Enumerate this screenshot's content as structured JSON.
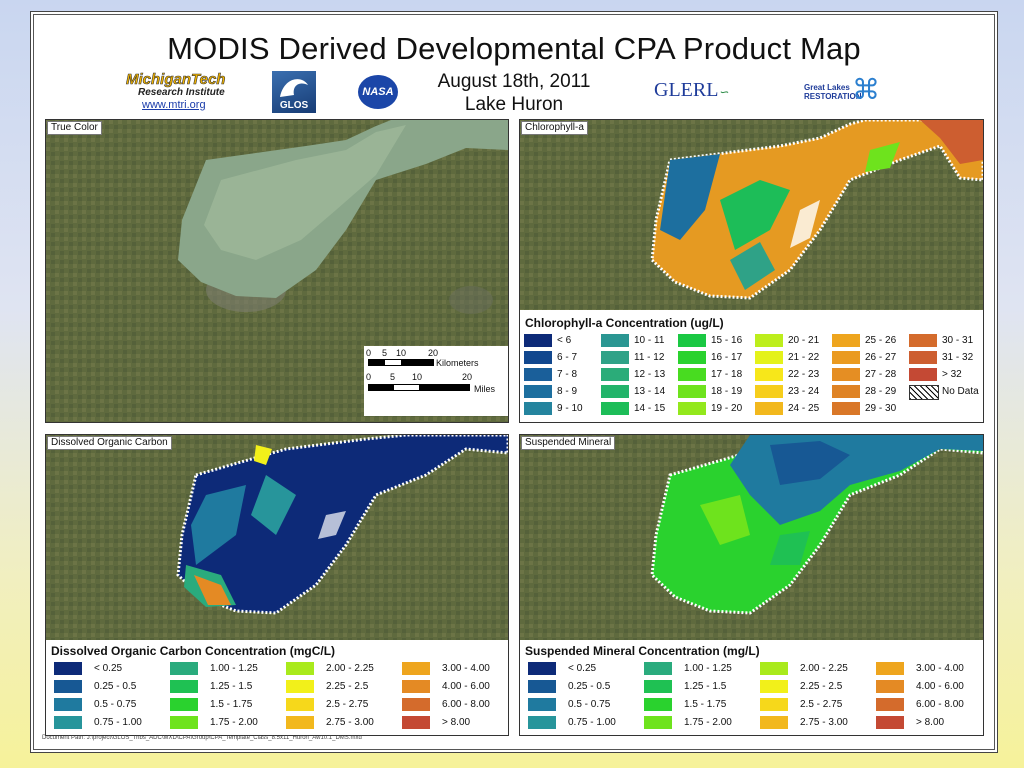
{
  "header": {
    "title": "MODIS Derived Developmental CPA Product Map",
    "date": "August 18th, 2011",
    "lake": "Lake Huron"
  },
  "logos": {
    "mtu_line1": "MichiganTech",
    "mtu_line2": "Research Institute",
    "mtu_url": "www.mtri.org",
    "glos": "GLOS",
    "nasa": "NASA",
    "glerl": "GLERL",
    "glri_line1": "Great Lakes",
    "glri_line2": "RESTORATION"
  },
  "panels": {
    "true_color": "True Color",
    "chlorophyll": "Chlorophyll-a",
    "doc": "Dissolved Organic Carbon",
    "sm": "Suspended Mineral"
  },
  "scale_bar": {
    "km_ticks": [
      "0",
      "5",
      "10",
      "20"
    ],
    "km_unit": "Kilometers",
    "mi_ticks": [
      "0",
      "5",
      "10",
      "20"
    ],
    "mi_unit": "Miles"
  },
  "legends": {
    "chl": {
      "title": "Chlorophyll-a Concentration (ug/L)",
      "columns": [
        [
          {
            "label": "< 6",
            "color": "#0d2a78"
          },
          {
            "label": "6 - 7",
            "color": "#11478e"
          },
          {
            "label": "7 - 8",
            "color": "#1a5f9a"
          },
          {
            "label": "8 - 9",
            "color": "#1d6f9f"
          },
          {
            "label": "9 - 10",
            "color": "#24849e"
          }
        ],
        [
          {
            "label": "10 - 11",
            "color": "#2a9692"
          },
          {
            "label": "11 - 12",
            "color": "#2fa287"
          },
          {
            "label": "12 - 13",
            "color": "#2bac79"
          },
          {
            "label": "13 - 14",
            "color": "#22b46a"
          },
          {
            "label": "14 - 15",
            "color": "#1dbd58"
          }
        ],
        [
          {
            "label": "15 - 16",
            "color": "#1ac843"
          },
          {
            "label": "16 - 17",
            "color": "#2ad22e"
          },
          {
            "label": "17 - 18",
            "color": "#48dc20"
          },
          {
            "label": "18 - 19",
            "color": "#6ee31d"
          },
          {
            "label": "19 - 20",
            "color": "#93e81c"
          }
        ],
        [
          {
            "label": "20 - 21",
            "color": "#bdee1c"
          },
          {
            "label": "21 - 22",
            "color": "#e4f21a"
          },
          {
            "label": "22 - 23",
            "color": "#f7e71a"
          },
          {
            "label": "23 - 24",
            "color": "#f6ce1c"
          },
          {
            "label": "24 - 25",
            "color": "#f2b81d"
          }
        ],
        [
          {
            "label": "25 - 26",
            "color": "#eea51e"
          },
          {
            "label": "26 - 27",
            "color": "#ea9a20"
          },
          {
            "label": "27 - 28",
            "color": "#e58e23"
          },
          {
            "label": "28 - 29",
            "color": "#df8325"
          },
          {
            "label": "29 - 30",
            "color": "#d97728"
          }
        ],
        [
          {
            "label": "30 - 31",
            "color": "#d46b2c"
          },
          {
            "label": "31 - 32",
            "color": "#cd5e30"
          },
          {
            "label": "> 32",
            "color": "#c44934"
          },
          {
            "label": "No Data",
            "color": "nodata"
          }
        ]
      ]
    },
    "doc": {
      "title": "Dissolved Organic Carbon Concentration (mgC/L)",
      "columns": [
        [
          {
            "label": "< 0.25",
            "color": "#0d2a78"
          },
          {
            "label": "0.25 - 0.5",
            "color": "#175894"
          },
          {
            "label": "0.5 - 0.75",
            "color": "#1f7a9f"
          },
          {
            "label": "0.75 - 1.00",
            "color": "#27959b"
          }
        ],
        [
          {
            "label": "1.00 - 1.25",
            "color": "#2aab7d"
          },
          {
            "label": "1.25 - 1.5",
            "color": "#1fc153"
          },
          {
            "label": "1.5 - 1.75",
            "color": "#2ad22e"
          },
          {
            "label": "1.75 - 2.00",
            "color": "#6ee31d"
          }
        ],
        [
          {
            "label": "2.00 - 2.25",
            "color": "#a9ea1c"
          },
          {
            "label": "2.25 - 2.5",
            "color": "#f2f01a"
          },
          {
            "label": "2.5 - 2.75",
            "color": "#f6d81b"
          },
          {
            "label": "2.75 - 3.00",
            "color": "#f2b81d"
          }
        ],
        [
          {
            "label": "3.00 - 4.00",
            "color": "#eea51e"
          },
          {
            "label": "4.00 - 6.00",
            "color": "#e48a24"
          },
          {
            "label": "6.00 - 8.00",
            "color": "#d46b2c"
          },
          {
            "label": "> 8.00",
            "color": "#c44934"
          }
        ]
      ]
    },
    "sm": {
      "title": "Suspended Mineral Concentration (mg/L)",
      "columns": [
        [
          {
            "label": "< 0.25",
            "color": "#0d2a78"
          },
          {
            "label": "0.25 - 0.5",
            "color": "#175894"
          },
          {
            "label": "0.5 - 0.75",
            "color": "#1f7a9f"
          },
          {
            "label": "0.75 - 1.00",
            "color": "#27959b"
          }
        ],
        [
          {
            "label": "1.00 - 1.25",
            "color": "#2aab7d"
          },
          {
            "label": "1.25 - 1.5",
            "color": "#1fc153"
          },
          {
            "label": "1.5 - 1.75",
            "color": "#2ad22e"
          },
          {
            "label": "1.75 - 2.00",
            "color": "#6ee31d"
          }
        ],
        [
          {
            "label": "2.00 - 2.25",
            "color": "#a9ea1c"
          },
          {
            "label": "2.25 - 2.5",
            "color": "#f2f01a"
          },
          {
            "label": "2.5 - 2.75",
            "color": "#f6d81b"
          },
          {
            "label": "2.75 - 3.00",
            "color": "#f2b81d"
          }
        ],
        [
          {
            "label": "3.00 - 4.00",
            "color": "#eea51e"
          },
          {
            "label": "4.00 - 6.00",
            "color": "#e48a24"
          },
          {
            "label": "6.00 - 8.00",
            "color": "#d46b2c"
          },
          {
            "label": "> 8.00",
            "color": "#c44934"
          }
        ]
      ]
    }
  },
  "footer": {
    "doc_path": "Document Path: J:\\project\\GLOS_Tribs_ADC\\MXD\\CPA\\Group\\CPA_Template_Class_8.5x11_Huron_Aw10.1_DMS.mxd"
  }
}
